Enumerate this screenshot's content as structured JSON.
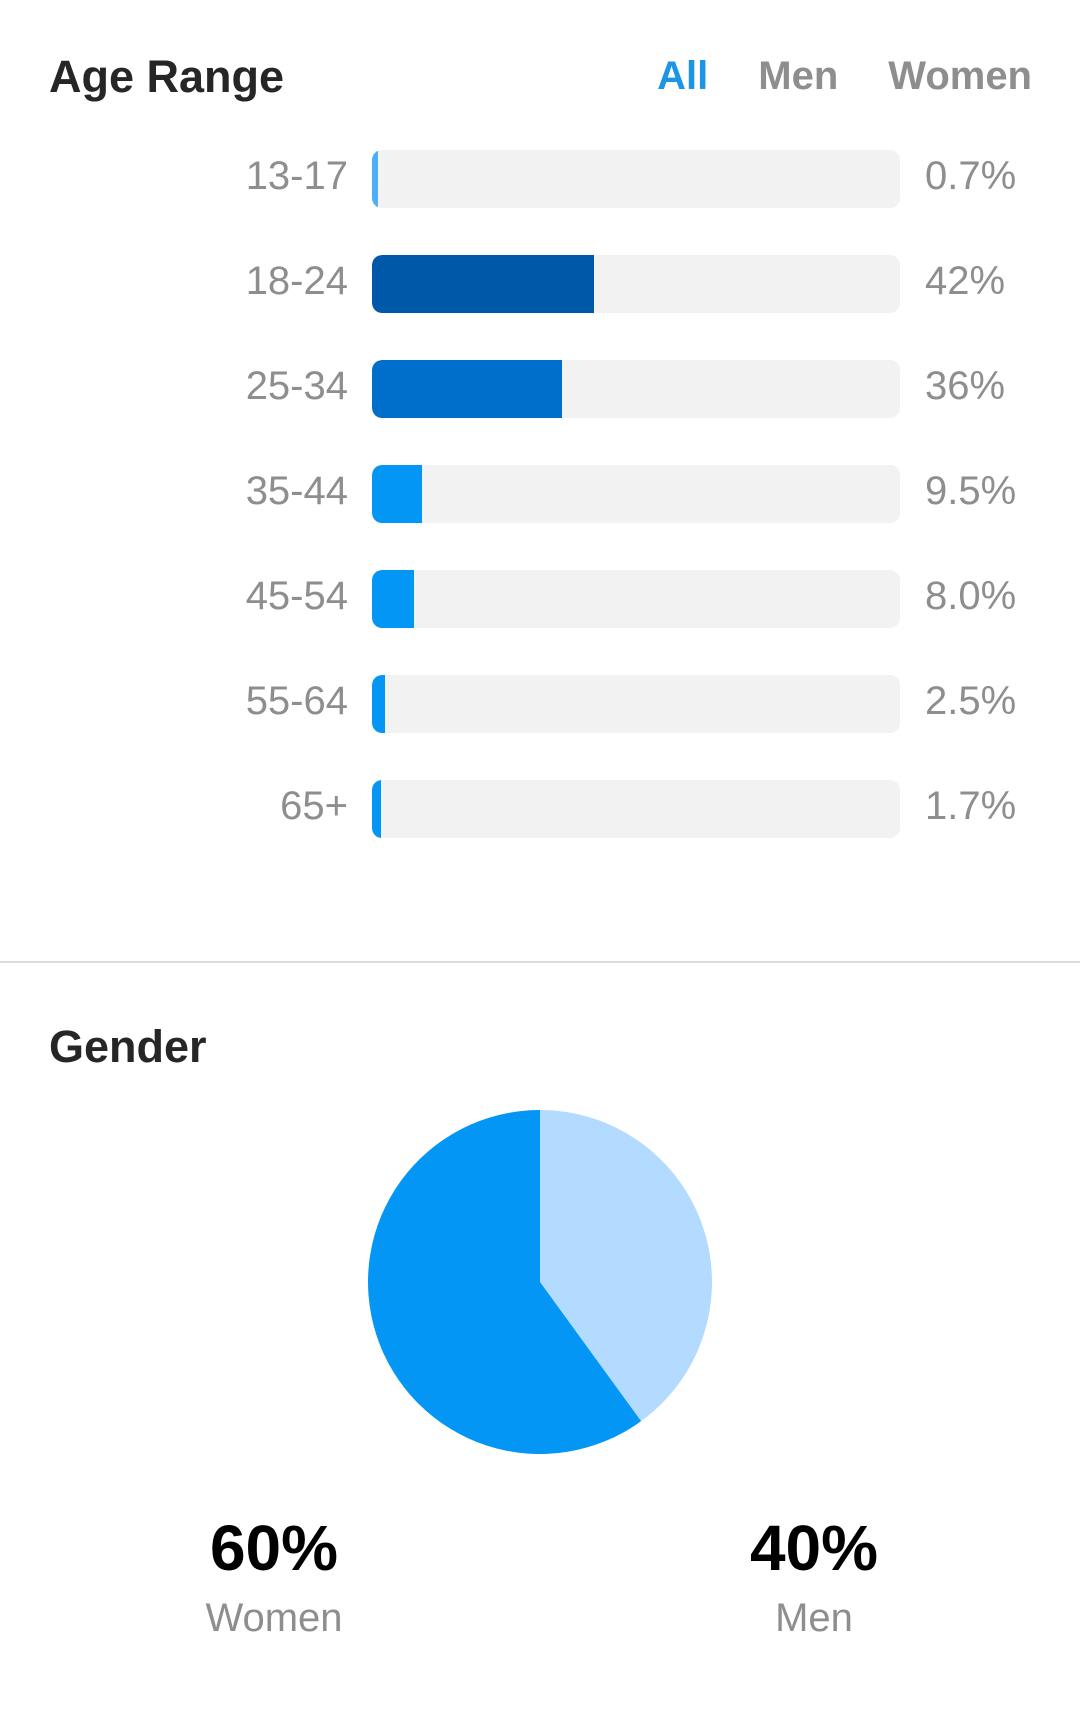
{
  "age_range": {
    "title": "Age Range",
    "filters": [
      {
        "label": "All",
        "active": true
      },
      {
        "label": "Men",
        "active": false
      },
      {
        "label": "Women",
        "active": false
      }
    ]
  },
  "gender": {
    "title": "Gender",
    "women": {
      "percent": "60%",
      "label": "Women"
    },
    "men": {
      "percent": "40%",
      "label": "Men"
    }
  },
  "colors": {
    "track": "#f2f2f2",
    "accent_tab": "#1c95e6",
    "women_slice": "#0496f5",
    "men_slice": "#b3daff"
  },
  "chart_data": [
    {
      "type": "bar",
      "orientation": "horizontal",
      "title": "Age Range",
      "categories": [
        "13-17",
        "18-24",
        "25-34",
        "35-44",
        "45-54",
        "55-64",
        "65+"
      ],
      "values": [
        0.7,
        42,
        36,
        9.5,
        8.0,
        2.5,
        1.7
      ],
      "value_labels": [
        "0.7%",
        "42%",
        "36%",
        "9.5%",
        "8.0%",
        "2.5%",
        "1.7%"
      ],
      "colors": [
        "#4db0f7",
        "#0058a8",
        "#006fcc",
        "#0496f5",
        "#0496f5",
        "#0496f5",
        "#0496f5"
      ],
      "xlim": [
        0,
        100
      ]
    },
    {
      "type": "pie",
      "title": "Gender",
      "categories": [
        "Women",
        "Men"
      ],
      "values": [
        60,
        40
      ],
      "colors": [
        "#0496f5",
        "#b3daff"
      ]
    }
  ]
}
